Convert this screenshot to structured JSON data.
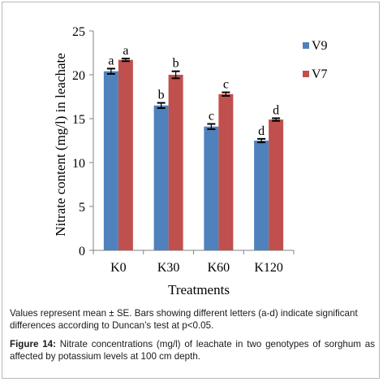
{
  "chart_data": {
    "type": "bar",
    "title": "",
    "xlabel": "Treatments",
    "ylabel": "Nitrate content (mg/l) in leachate",
    "ylim": [
      0,
      25
    ],
    "yticks": [
      0,
      5,
      10,
      15,
      20,
      25
    ],
    "categories": [
      "K0",
      "K30",
      "K60",
      "K120"
    ],
    "series": [
      {
        "name": "V9",
        "color": "#4f81bd",
        "values": [
          20.4,
          16.5,
          14.1,
          12.5
        ],
        "errors": [
          0.3,
          0.3,
          0.3,
          0.2
        ],
        "letters": [
          "a",
          "b",
          "c",
          "d"
        ]
      },
      {
        "name": "V7",
        "color": "#c0504d",
        "values": [
          21.7,
          20.0,
          17.8,
          14.9
        ],
        "errors": [
          0.15,
          0.4,
          0.2,
          0.15
        ],
        "letters": [
          "a",
          "b",
          "c",
          "d"
        ]
      }
    ],
    "legend_position": "right",
    "grid": false
  },
  "note": "Values represent mean ± SE. Bars showing different  letters (a-d) indicate significant differences according to Duncan’s test at p<0.05.",
  "caption": {
    "label": "Figure 14:",
    "text": " Nitrate concentrations (mg/l) of leachate in two genotypes of sorghum as affected by potassium levels at 100 cm depth."
  }
}
